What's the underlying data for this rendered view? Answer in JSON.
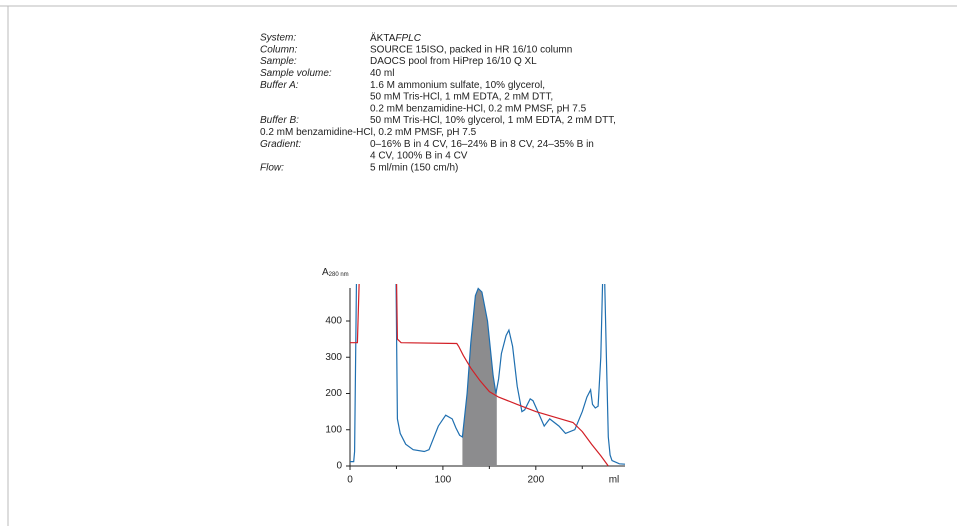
{
  "info": [
    {
      "label": "System:",
      "lines": [
        [
          "ÄKTA",
          "FPLC"
        ]
      ]
    },
    {
      "label": "Column:",
      "lines": [
        "SOURCE 15ISO, packed in HR 16/10 column"
      ]
    },
    {
      "label": "Sample:",
      "lines": [
        "DAOCS pool from HiPrep 16/10 Q XL"
      ]
    },
    {
      "label": "Sample volume:",
      "lines": [
        "40 ml"
      ]
    },
    {
      "label": "Buffer A:",
      "lines": [
        "1.6 M ammonium sulfate, 10% glycerol,",
        "50 mM Tris-HCl, 1 mM EDTA, 2 mM DTT,",
        "0.2 mM benzamidine-HCl, 0.2 mM PMSF, pH 7.5"
      ]
    },
    {
      "label": "Buffer B:",
      "lines": [
        "50 mM Tris-HCl, 10% glycerol, 1 mM EDTA, 2 mM DTT,"
      ],
      "wrap": "0.2 mM benzamidine-HCl, 0.2 mM PMSF, pH 7.5"
    },
    {
      "label": "Gradient:",
      "lines": [
        "0–16% B in 4 CV, 16–24% B in 8 CV, 24–35% B in",
        "4 CV, 100% B in 4 CV"
      ]
    },
    {
      "label": "Flow:",
      "lines": [
        "5 ml/min (150 cm/h)"
      ]
    }
  ],
  "chart_data": {
    "type": "line",
    "y_label": "A",
    "y_label_sub": "280 nm",
    "x_label": "ml",
    "xlim": [
      0,
      296
    ],
    "ylim": [
      0,
      491
    ],
    "xticks": [
      0,
      100,
      200
    ],
    "xminor": [
      50,
      150,
      250
    ],
    "yticks": [
      0,
      100,
      200,
      300,
      400
    ],
    "fraction": [
      121,
      158
    ],
    "fraction_color": "#8c8c8e",
    "series": [
      {
        "color": "#1f6fb0",
        "x": [
          0,
          4,
          5,
          7,
          49.5,
          51,
          54,
          60,
          68,
          80,
          85,
          95,
          103,
          110,
          114,
          118,
          121,
          126,
          130,
          135,
          138,
          142,
          148,
          154,
          157,
          160,
          163,
          168,
          171,
          175,
          180,
          185,
          188,
          194,
          197,
          204,
          209,
          215,
          225,
          232,
          242,
          250,
          255,
          259,
          261,
          264,
          267,
          270,
          272,
          274,
          276,
          278,
          280,
          282,
          290,
          296
        ],
        "values": [
          12,
          12,
          40,
          520,
          520,
          130,
          90,
          60,
          45,
          40,
          45,
          110,
          140,
          130,
          105,
          85,
          80,
          200,
          340,
          470,
          490,
          480,
          400,
          250,
          200,
          240,
          310,
          360,
          375,
          330,
          220,
          150,
          155,
          185,
          180,
          140,
          110,
          130,
          110,
          90,
          100,
          150,
          190,
          210,
          170,
          160,
          165,
          300,
          520,
          520,
          300,
          80,
          30,
          15,
          6,
          5
        ]
      },
      {
        "color": "#d21f26",
        "x": [
          0,
          8,
          10,
          50,
          51,
          55,
          115,
          117,
          122,
          130,
          140,
          150,
          160,
          180,
          200,
          220,
          240,
          250,
          260,
          270,
          278
        ],
        "values": [
          340,
          340,
          520,
          520,
          350,
          340,
          338,
          330,
          305,
          270,
          235,
          205,
          190,
          170,
          150,
          135,
          120,
          95,
          60,
          28,
          0
        ]
      }
    ]
  }
}
